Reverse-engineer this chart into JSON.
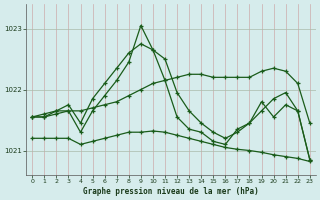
{
  "title": "Graphe pression niveau de la mer (hPa)",
  "bg_color": "#d6ecec",
  "line_color": "#1a5c1a",
  "grid_color_v": "#b8cccc",
  "grid_color_h": "#c8b8b8",
  "xlim": [
    -0.5,
    23.5
  ],
  "ylim": [
    1020.6,
    1023.4
  ],
  "yticks": [
    1021,
    1022,
    1023
  ],
  "xticks": [
    0,
    1,
    2,
    3,
    4,
    5,
    6,
    7,
    8,
    9,
    10,
    11,
    12,
    13,
    14,
    15,
    16,
    17,
    18,
    19,
    20,
    21,
    22,
    23
  ],
  "line1": [
    1021.55,
    1021.55,
    1021.6,
    1021.65,
    1021.3,
    1021.65,
    1021.9,
    1022.15,
    1022.45,
    1023.05,
    1022.65,
    1022.15,
    1021.55,
    1021.35,
    1021.3,
    1021.15,
    1021.1,
    1021.35,
    1021.45,
    1021.8,
    1021.55,
    1021.75,
    1021.65,
    1020.85
  ],
  "line2": [
    1021.55,
    1021.55,
    1021.65,
    1021.75,
    1021.45,
    1021.85,
    1022.1,
    1022.35,
    1022.6,
    1022.75,
    1022.65,
    1022.5,
    1021.95,
    1021.65,
    1021.45,
    1021.3,
    1021.2,
    1021.3,
    1021.45,
    1021.65,
    1021.85,
    1021.95,
    1021.65,
    1020.85
  ],
  "line3": [
    1021.55,
    1021.6,
    1021.65,
    1021.65,
    1021.65,
    1021.7,
    1021.75,
    1021.8,
    1021.9,
    1022.0,
    1022.1,
    1022.15,
    1022.2,
    1022.25,
    1022.25,
    1022.2,
    1022.2,
    1022.2,
    1022.2,
    1022.3,
    1022.35,
    1022.3,
    1022.1,
    1021.45
  ],
  "line4": [
    1021.2,
    1021.2,
    1021.2,
    1021.2,
    1021.1,
    1021.15,
    1021.2,
    1021.25,
    1021.3,
    1021.3,
    1021.32,
    1021.3,
    1021.25,
    1021.2,
    1021.15,
    1021.1,
    1021.05,
    1021.02,
    1021.0,
    1020.97,
    1020.93,
    1020.9,
    1020.87,
    1020.82
  ]
}
